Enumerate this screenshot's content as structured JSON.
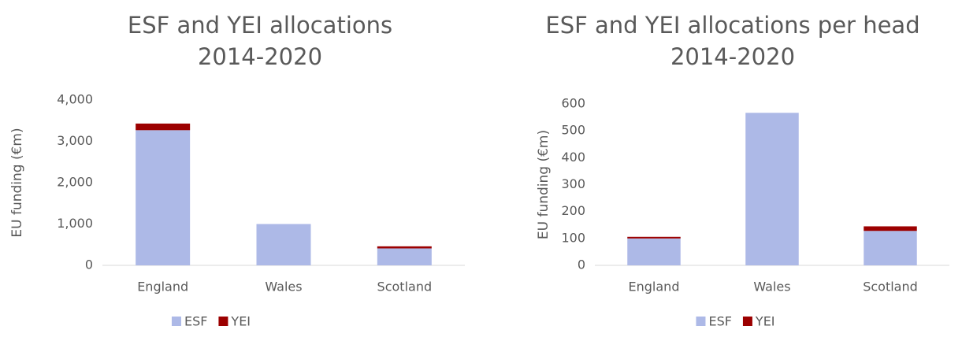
{
  "chart_data": [
    {
      "type": "bar",
      "stacked": true,
      "title": "ESF and YEI allocations 2014-2020",
      "y_label": "EU funding (€m)",
      "categories": [
        "England",
        "Wales",
        "Scotland"
      ],
      "series": [
        {
          "name": "ESF",
          "color": "#adb9e7",
          "values": [
            3270,
            1000,
            410
          ]
        },
        {
          "name": "YEI",
          "color": "#9c0000",
          "values": [
            160,
            0,
            50
          ]
        }
      ],
      "ylim": [
        0,
        4000
      ],
      "yticks": [
        0,
        {
          "value": 1000,
          "label": "1,000"
        },
        {
          "value": 2000,
          "label": "2,000"
        },
        {
          "value": 3000,
          "label": "3,000"
        },
        {
          "value": 4000,
          "label": "4,000"
        }
      ],
      "legend": "bottom"
    },
    {
      "type": "bar",
      "stacked": true,
      "title": "ESF and YEI allocations per head 2014-2020",
      "y_label": "EU funding (€m)",
      "categories": [
        "England",
        "Wales",
        "Scotland"
      ],
      "series": [
        {
          "name": "ESF",
          "color": "#adb9e7",
          "values": [
            100,
            567,
            128
          ]
        },
        {
          "name": "YEI",
          "color": "#9c0000",
          "values": [
            6,
            0,
            17
          ]
        }
      ],
      "ylim": [
        0,
        600
      ],
      "yticks": [
        0,
        100,
        200,
        300,
        400,
        500,
        600
      ],
      "legend": "bottom"
    }
  ]
}
